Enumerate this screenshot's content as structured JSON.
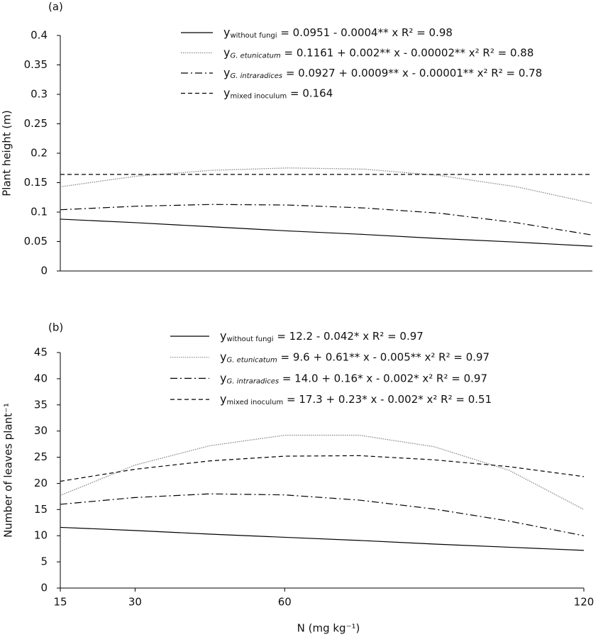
{
  "chart_data": [
    {
      "type": "line",
      "panel_label": "(a)",
      "y_label": "Plant height (m)",
      "x": [
        15,
        30,
        45,
        60,
        75,
        90,
        105,
        120
      ],
      "xlim": [
        15,
        120
      ],
      "ylim": [
        0,
        0.4
      ],
      "yticks": [
        0,
        0.05,
        0.1,
        0.15,
        0.2,
        0.25,
        0.3,
        0.35,
        0.4
      ],
      "series": [
        {
          "name": "y",
          "subscript": "without fungi",
          "equation": " = 0.0951 - 0.0004** x  R² = 0.98",
          "italic": false,
          "style": "solid",
          "color": "#000000",
          "values": [
            0.088,
            0.082,
            0.075,
            0.068,
            0.062,
            0.055,
            0.049,
            0.042
          ]
        },
        {
          "name": "y",
          "subscript": "G. etunicatum",
          "equation": " = 0.1161  + 0.002** x - 0.00002** x² R² = 0.88",
          "italic": true,
          "style": "dotted",
          "color": "#888888",
          "values": [
            0.143,
            0.161,
            0.171,
            0.175,
            0.173,
            0.162,
            0.143,
            0.115
          ]
        },
        {
          "name": "y",
          "subscript": "G. intraradices",
          "equation": " = 0.0927  + 0.0009** x - 0.00001** x² R² = 0.78",
          "italic": true,
          "style": "dashdot",
          "color": "#000000",
          "values": [
            0.104,
            0.11,
            0.113,
            0.112,
            0.107,
            0.098,
            0.082,
            0.061
          ]
        },
        {
          "name": "y",
          "subscript": "mixed inoculum",
          "equation": " = 0.164",
          "italic": false,
          "style": "dashed",
          "color": "#000000",
          "values": [
            0.164,
            0.164,
            0.164,
            0.164,
            0.164,
            0.164,
            0.164,
            0.164
          ]
        }
      ]
    },
    {
      "type": "line",
      "panel_label": "(b)",
      "y_label": "Number of leaves plant⁻¹",
      "x_label": "N (mg kg⁻¹)",
      "x": [
        15,
        30,
        45,
        60,
        75,
        90,
        105,
        120
      ],
      "xlim": [
        15,
        120
      ],
      "xticks": [
        15,
        30,
        60,
        120
      ],
      "ylim": [
        0,
        45
      ],
      "yticks": [
        0,
        5,
        10,
        15,
        20,
        25,
        30,
        35,
        40,
        45
      ],
      "series": [
        {
          "name": "y",
          "subscript": "without fungi",
          "equation": " = 12.2 - 0.042* x R² = 0.97",
          "italic": false,
          "style": "solid",
          "color": "#000000",
          "values": [
            11.6,
            11.0,
            10.3,
            9.7,
            9.1,
            8.4,
            7.8,
            7.2
          ]
        },
        {
          "name": "y",
          "subscript": "G. etunicatum",
          "equation": " = 9.6 + 0.61** x - 0.005** x² R² = 0.97",
          "italic": true,
          "style": "dotted",
          "color": "#888888",
          "values": [
            17.7,
            23.5,
            27.2,
            29.2,
            29.2,
            27.0,
            22.5,
            15.0
          ]
        },
        {
          "name": "y",
          "subscript": "G. intraradices",
          "equation": " = 14.0 + 0.16* x - 0.002* x² R² = 0.97",
          "italic": true,
          "style": "dashdot",
          "color": "#000000",
          "values": [
            16.0,
            17.3,
            18.0,
            17.8,
            16.8,
            15.1,
            12.8,
            10.0
          ]
        },
        {
          "name": "y",
          "subscript": "mixed inoculum",
          "equation": " = 17.3 + 0.23* x - 0.002* x²  R² = 0.51",
          "italic": false,
          "style": "dashed",
          "color": "#000000",
          "values": [
            20.4,
            22.7,
            24.3,
            25.2,
            25.3,
            24.5,
            23.2,
            21.3
          ]
        }
      ]
    }
  ]
}
